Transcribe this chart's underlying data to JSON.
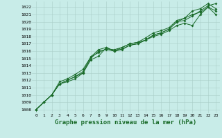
{
  "xlabel": "Graphe pression niveau de la mer (hPa)",
  "ylim": [
    1007.5,
    1022.8
  ],
  "xlim": [
    -0.5,
    23.5
  ],
  "yticks": [
    1008,
    1009,
    1010,
    1011,
    1012,
    1013,
    1014,
    1015,
    1016,
    1017,
    1018,
    1019,
    1020,
    1021,
    1022
  ],
  "xticks": [
    0,
    1,
    2,
    3,
    4,
    5,
    6,
    7,
    8,
    9,
    10,
    11,
    12,
    13,
    14,
    15,
    16,
    17,
    18,
    19,
    20,
    21,
    22,
    23
  ],
  "bg_color": "#c8ece8",
  "grid_color": "#aacfc8",
  "line_color": "#1a6b2a",
  "series": [
    [
      1008.0,
      1009.0,
      1010.0,
      1011.5,
      1011.8,
      1012.2,
      1013.0,
      1014.8,
      1015.3,
      1016.5,
      1016.0,
      1016.2,
      1016.8,
      1017.0,
      1017.5,
      1018.0,
      1018.3,
      1018.8,
      1019.5,
      1019.8,
      1019.5,
      1021.0,
      1022.0,
      1021.0
    ],
    [
      1008.0,
      1009.0,
      1010.0,
      1011.5,
      1012.0,
      1012.5,
      1013.0,
      1015.0,
      1016.0,
      1016.2,
      1016.0,
      1016.3,
      1016.8,
      1017.0,
      1017.5,
      1018.2,
      1018.5,
      1019.0,
      1020.0,
      1020.2,
      1020.8,
      1021.5,
      1022.2,
      1022.5
    ],
    [
      1008.0,
      1009.0,
      1010.0,
      1011.5,
      1012.0,
      1012.5,
      1013.2,
      1015.2,
      1015.8,
      1016.3,
      1016.2,
      1016.5,
      1017.0,
      1017.2,
      1017.5,
      1018.2,
      1018.5,
      1019.0,
      1020.0,
      1020.5,
      1021.0,
      1021.3,
      1022.0,
      1021.5
    ],
    [
      1008.0,
      1009.0,
      1010.0,
      1011.8,
      1012.2,
      1012.8,
      1013.5,
      1015.2,
      1016.2,
      1016.5,
      1016.0,
      1016.5,
      1017.0,
      1017.2,
      1017.8,
      1018.5,
      1018.8,
      1019.2,
      1020.2,
      1020.5,
      1021.5,
      1021.8,
      1022.5,
      1021.8
    ]
  ],
  "marker": "D",
  "marker_size": 2.0,
  "line_width": 0.7,
  "xlabel_fontsize": 6.5,
  "tick_fontsize": 4.5
}
